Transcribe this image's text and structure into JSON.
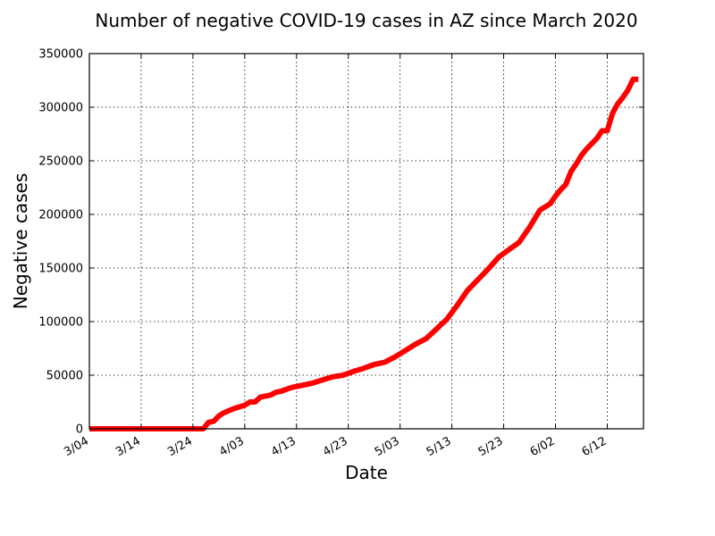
{
  "chart_data": {
    "type": "line",
    "title": "Number of negative COVID-19 cases in AZ since March 2020",
    "xlabel": "Date",
    "ylabel": "Negative cases",
    "xlim": [
      "3/04",
      "6/19"
    ],
    "ylim": [
      0,
      350000
    ],
    "grid": true,
    "x_ticks": [
      "3/04",
      "3/14",
      "3/24",
      "4/03",
      "4/13",
      "4/23",
      "5/03",
      "5/13",
      "5/23",
      "6/02",
      "6/12"
    ],
    "y_ticks": [
      0,
      50000,
      100000,
      150000,
      200000,
      250000,
      300000,
      350000
    ],
    "series": [
      {
        "color": "#ff0000",
        "x": [
          "3/04",
          "3/10",
          "3/16",
          "3/22",
          "3/26",
          "3/27",
          "3/28",
          "3/29",
          "3/30",
          "3/31",
          "4/01",
          "4/02",
          "4/03",
          "4/04",
          "4/05",
          "4/06",
          "4/07",
          "4/08",
          "4/09",
          "4/10",
          "4/12",
          "4/14",
          "4/16",
          "4/18",
          "4/20",
          "4/22",
          "4/24",
          "4/26",
          "4/28",
          "4/30",
          "5/02",
          "5/04",
          "5/06",
          "5/08",
          "5/10",
          "5/12",
          "5/14",
          "5/16",
          "5/18",
          "5/20",
          "5/22",
          "5/24",
          "5/26",
          "5/28",
          "5/30",
          "6/01",
          "6/02",
          "6/03",
          "6/04",
          "6/05",
          "6/06",
          "6/07",
          "6/08",
          "6/09",
          "6/10",
          "6/11",
          "6/12",
          "6/13",
          "6/14",
          "6/15",
          "6/16",
          "6/17",
          "6/18"
        ],
        "y": [
          0,
          0,
          0,
          0,
          0,
          6000,
          7000,
          12000,
          15000,
          17000,
          19000,
          20500,
          22000,
          25000,
          25000,
          29500,
          30500,
          31500,
          34000,
          35000,
          38500,
          40500,
          42500,
          45500,
          48500,
          50000,
          53500,
          56500,
          60000,
          62000,
          67000,
          73000,
          79000,
          84000,
          93000,
          102000,
          115000,
          129000,
          139000,
          149000,
          160000,
          167000,
          174000,
          188000,
          204000,
          210000,
          217000,
          223000,
          228000,
          240000,
          247000,
          255000,
          261000,
          266000,
          271000,
          278000,
          278000,
          294000,
          303000,
          309000,
          316000,
          326000,
          326000
        ]
      }
    ]
  }
}
